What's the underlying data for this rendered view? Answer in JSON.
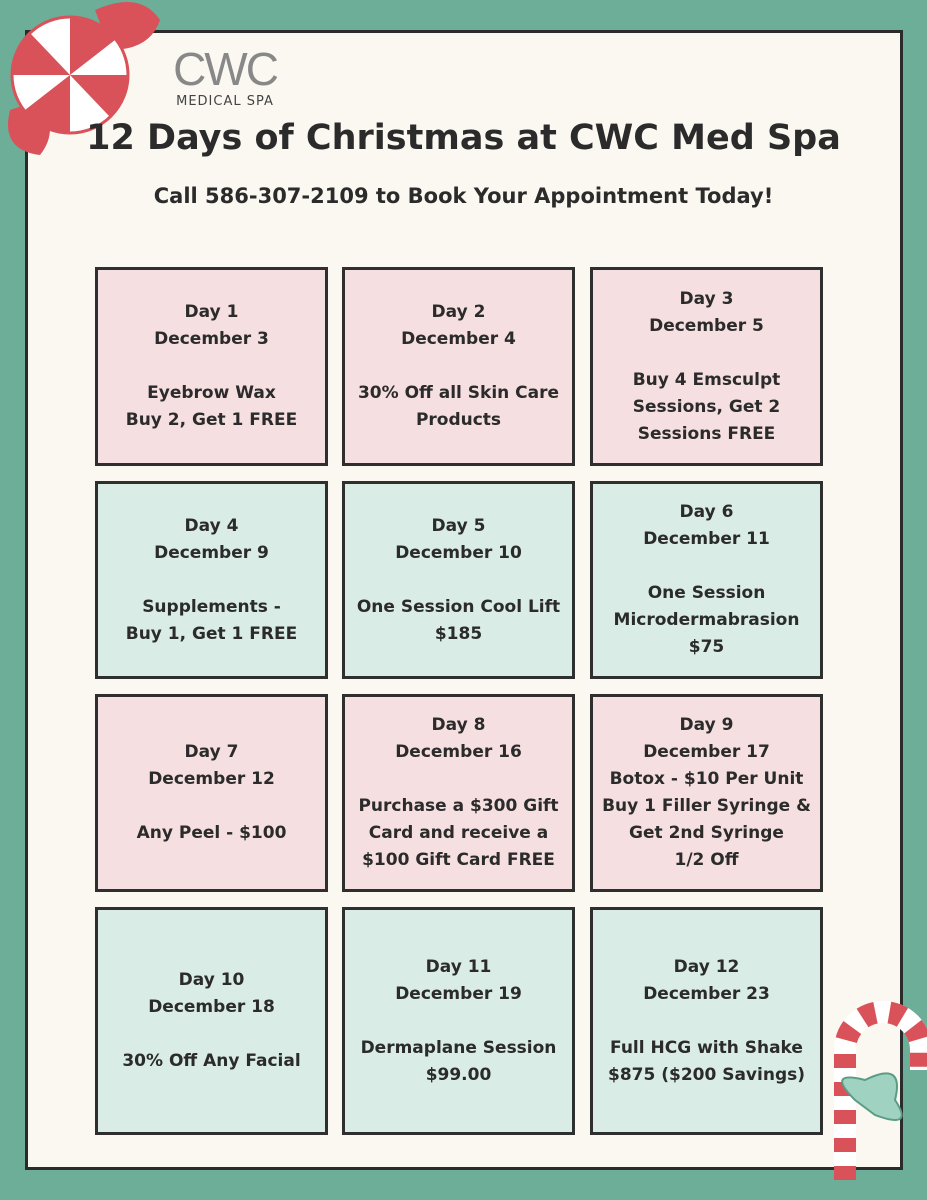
{
  "header": {
    "logo": "CWC",
    "logo_sub": "MEDICAL SPA",
    "title": "12 Days of Christmas at CWC Med Spa",
    "subtitle": "Call 586-307-2109 to Book Your Appointment Today!"
  },
  "cells": [
    {
      "day": "Day 1",
      "date": "December 3",
      "offer": [
        "Eyebrow Wax",
        "Buy 2, Get 1 FREE"
      ]
    },
    {
      "day": "Day 2",
      "date": "December 4",
      "offer": [
        "30% Off all Skin Care",
        "Products"
      ]
    },
    {
      "day": "Day 3",
      "date": "December 5",
      "offer": [
        "Buy 4 Emsculpt",
        "Sessions, Get 2",
        "Sessions FREE"
      ]
    },
    {
      "day": "Day 4",
      "date": "December 9",
      "offer": [
        "Supplements -",
        "Buy 1, Get 1 FREE"
      ]
    },
    {
      "day": "Day 5",
      "date": "December 10",
      "offer": [
        "One Session Cool Lift",
        "$185"
      ]
    },
    {
      "day": "Day 6",
      "date": "December 11",
      "offer": [
        "One Session",
        "Microdermabrasion",
        "$75"
      ]
    },
    {
      "day": "Day 7",
      "date": "December 12",
      "offer": [
        "Any Peel - $100"
      ]
    },
    {
      "day": "Day 8",
      "date": "December 16",
      "offer": [
        "Purchase a $300 Gift",
        "Card and receive a",
        "$100 Gift Card FREE"
      ]
    },
    {
      "day": "Day 9",
      "date": "December 17",
      "offer": [
        "Botox - $10 Per Unit",
        "Buy 1 Filler Syringe &",
        "Get 2nd Syringe",
        "1/2 Off"
      ]
    },
    {
      "day": "Day 10",
      "date": "December 18",
      "offer": [
        "30% Off Any Facial"
      ]
    },
    {
      "day": "Day 11",
      "date": "December 19",
      "offer": [
        "Dermaplane Session",
        "$99.00"
      ]
    },
    {
      "day": "Day 12",
      "date": "December 23",
      "offer": [
        "Full HCG with Shake",
        "$875 ($200 Savings)"
      ]
    }
  ]
}
